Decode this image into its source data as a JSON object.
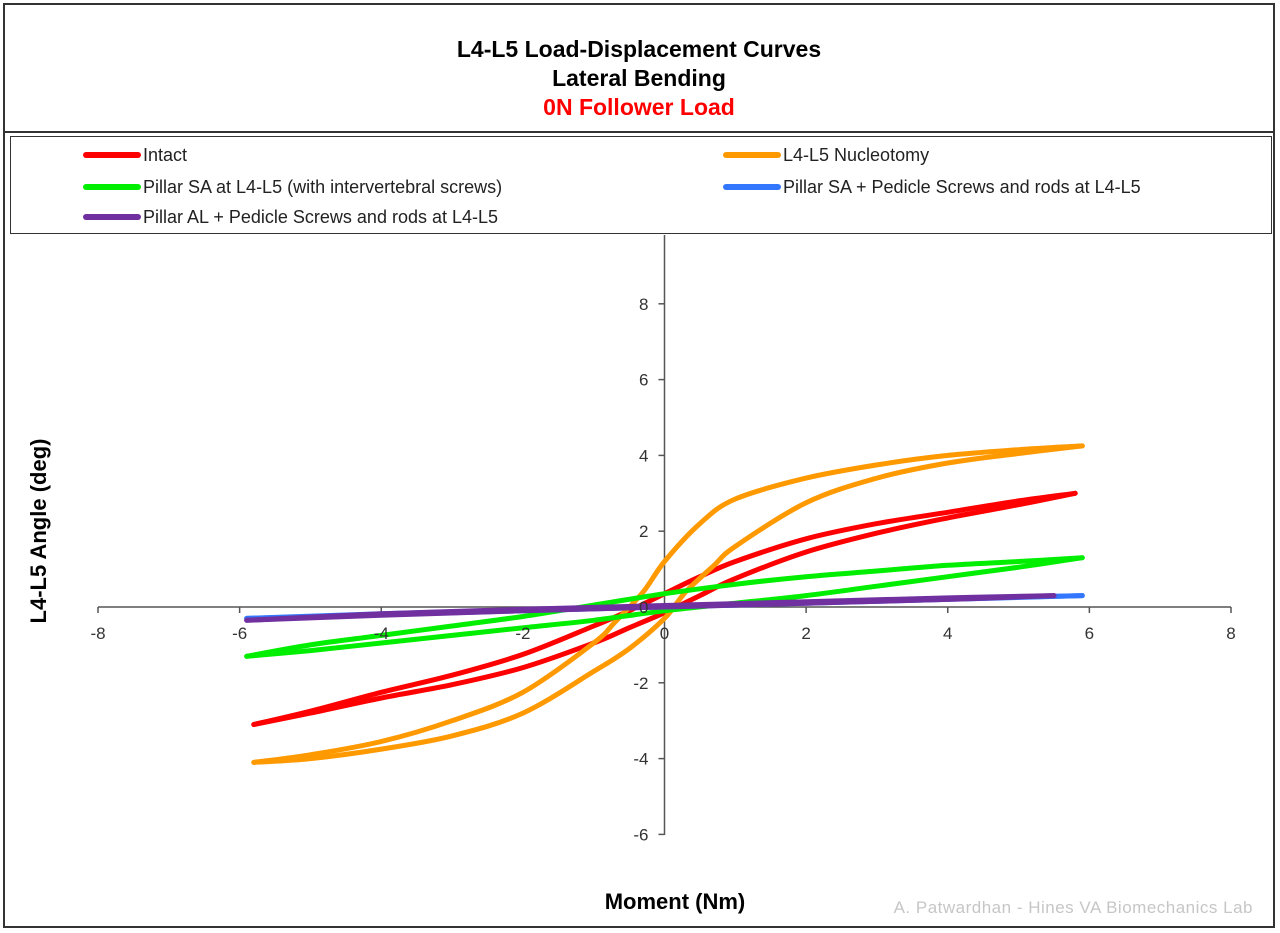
{
  "title": {
    "line1": "L4-L5 Load-Displacement Curves",
    "line2": "Lateral Bending",
    "line3": "0N Follower Load"
  },
  "watermark": "A. Patwardhan - Hines VA Biomechanics Lab",
  "chart_data": {
    "type": "line",
    "xlabel": "Moment (Nm)",
    "ylabel": "L4-L5 Angle (deg)",
    "xlim": [
      -8,
      8
    ],
    "ylim": [
      -6,
      10
    ],
    "x_ticks": [
      -8,
      -6,
      -4,
      -2,
      0,
      2,
      4,
      6,
      8
    ],
    "y_ticks": [
      -6,
      -4,
      -2,
      0,
      2,
      4,
      6,
      8
    ],
    "grid": false,
    "legend_position": "top",
    "series": [
      {
        "name": "Intact",
        "color": "#ff0000",
        "loading": {
          "x": [
            -5.8,
            -5,
            -4,
            -3,
            -2,
            -1,
            -0.5,
            0,
            0.5,
            1,
            2,
            3,
            4,
            5,
            5.8
          ],
          "y": [
            -3.1,
            -2.8,
            -2.4,
            -2.05,
            -1.6,
            -0.95,
            -0.55,
            -0.15,
            0.3,
            0.75,
            1.45,
            1.95,
            2.35,
            2.7,
            3.0
          ]
        },
        "unloading": {
          "x": [
            5.8,
            5,
            4,
            3,
            2,
            1,
            0.5,
            0,
            -0.5,
            -1,
            -2,
            -3,
            -4,
            -5,
            -5.8
          ],
          "y": [
            3.0,
            2.8,
            2.5,
            2.2,
            1.8,
            1.2,
            0.8,
            0.35,
            -0.1,
            -0.5,
            -1.25,
            -1.8,
            -2.25,
            -2.75,
            -3.1
          ]
        }
      },
      {
        "name": "L4-L5 Nucleotomy",
        "color": "#ff9900",
        "loading": {
          "x": [
            -5.8,
            -5,
            -4,
            -3,
            -2,
            -1,
            -0.5,
            0,
            0.3,
            0.7,
            1,
            2,
            3,
            4,
            5,
            5.9
          ],
          "y": [
            -4.1,
            -4.0,
            -3.75,
            -3.4,
            -2.8,
            -1.7,
            -1.1,
            -0.3,
            0.4,
            1.1,
            1.6,
            2.75,
            3.4,
            3.8,
            4.05,
            4.25
          ]
        },
        "unloading": {
          "x": [
            5.9,
            5,
            4,
            3,
            2,
            1,
            0.5,
            0,
            -0.3,
            -0.7,
            -1,
            -2,
            -3,
            -4,
            -5,
            -5.8
          ],
          "y": [
            4.25,
            4.15,
            4.0,
            3.75,
            3.4,
            2.85,
            2.2,
            1.2,
            0.4,
            -0.4,
            -0.95,
            -2.25,
            -3.0,
            -3.55,
            -3.9,
            -4.1
          ]
        }
      },
      {
        "name": "Pillar SA at L4-L5 (with intervertebral screws)",
        "color": "#00ee00",
        "loading": {
          "x": [
            -5.9,
            -5,
            -4,
            -3,
            -2,
            -1,
            0,
            1,
            2,
            3,
            4,
            5,
            5.9
          ],
          "y": [
            -1.3,
            -1.15,
            -0.95,
            -0.75,
            -0.55,
            -0.35,
            -0.1,
            0.1,
            0.3,
            0.55,
            0.8,
            1.05,
            1.3
          ]
        },
        "unloading": {
          "x": [
            5.9,
            5,
            4,
            3,
            2,
            1,
            0,
            -1,
            -2,
            -3,
            -4,
            -5,
            -5.9
          ],
          "y": [
            1.3,
            1.2,
            1.1,
            0.95,
            0.8,
            0.6,
            0.35,
            0.05,
            -0.25,
            -0.5,
            -0.75,
            -1.0,
            -1.3
          ]
        }
      },
      {
        "name": "Pillar SA + Pedicle Screws and rods at L4-L5",
        "color": "#3377ff",
        "loading": {
          "x": [
            -5.9,
            -4,
            -2,
            0,
            2,
            4,
            5.9
          ],
          "y": [
            -0.3,
            -0.2,
            -0.1,
            0.0,
            0.1,
            0.2,
            0.3
          ]
        },
        "unloading": {
          "x": [
            5.9,
            4,
            2,
            0,
            -2,
            -4,
            -5.9
          ],
          "y": [
            0.3,
            0.22,
            0.12,
            0.03,
            -0.08,
            -0.18,
            -0.3
          ]
        }
      },
      {
        "name": "Pillar AL + Pedicle Screws and rods at L4-L5",
        "color": "#7030a0",
        "loading": {
          "x": [
            -5.9,
            -4,
            -2,
            0,
            2,
            4,
            5.5
          ],
          "y": [
            -0.35,
            -0.22,
            -0.1,
            0.0,
            0.1,
            0.2,
            0.3
          ]
        },
        "unloading": {
          "x": [
            5.5,
            4,
            2,
            0,
            -2,
            -4,
            -5.9
          ],
          "y": [
            0.3,
            0.24,
            0.14,
            0.04,
            -0.06,
            -0.18,
            -0.35
          ]
        }
      }
    ]
  }
}
